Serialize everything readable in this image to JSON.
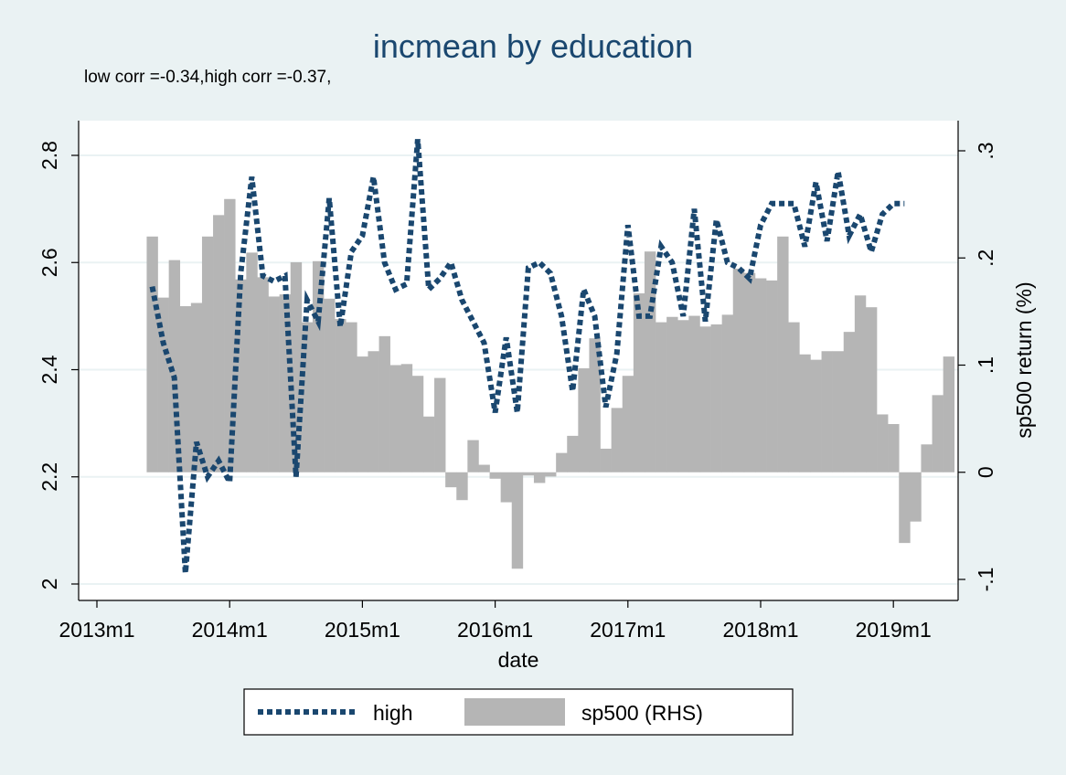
{
  "chart_data": {
    "type": "bar",
    "title": "incmean by education",
    "subtitle": "low corr =-0.34,high corr =-0.37,",
    "xlabel": "date",
    "ylabel_left": "",
    "ylabel_right": "sp500 return (%)",
    "x_ticks": [
      "2013m1",
      "2014m1",
      "2015m1",
      "2016m1",
      "2017m1",
      "2018m1",
      "2019m1"
    ],
    "y_left_ticks": [
      "2",
      "2.2",
      "2.4",
      "2.6",
      "2.8"
    ],
    "y_left_range": [
      2.0,
      2.8
    ],
    "y_right_ticks": [
      "-.1",
      "0",
      ".1",
      ".2",
      ".3"
    ],
    "y_right_range": [
      -0.1,
      0.3
    ],
    "legend": {
      "position": "bottom",
      "items": [
        "high",
        "sp500 (RHS)"
      ]
    },
    "colors": {
      "line": "#1a476f",
      "bar": "#b5b5b5"
    },
    "start_month": "2013m6",
    "series": [
      {
        "name": "sp500 (RHS)",
        "type": "bar",
        "axis": "right",
        "values": [
          0.22,
          0.163,
          0.198,
          0.155,
          0.158,
          0.22,
          0.24,
          0.255,
          0.18,
          0.205,
          0.182,
          0.164,
          0.166,
          0.196,
          0.14,
          0.197,
          0.162,
          0.143,
          0.14,
          0.108,
          0.113,
          0.127,
          0.1,
          0.101,
          0.09,
          0.052,
          0.088,
          -0.014,
          -0.026,
          0.03,
          0.007,
          -0.006,
          -0.028,
          -0.09,
          -0.003,
          -0.01,
          -0.004,
          0.018,
          0.034,
          0.097,
          0.125,
          0.022,
          0.06,
          0.09,
          0.167,
          0.206,
          0.14,
          0.145,
          0.142,
          0.146,
          0.136,
          0.138,
          0.147,
          0.19,
          0.186,
          0.181,
          0.179,
          0.22,
          0.14,
          0.11,
          0.105,
          0.113,
          0.113,
          0.131,
          0.165,
          0.154,
          0.054,
          0.045,
          -0.066,
          -0.046,
          0.026,
          0.072,
          0.108
        ]
      },
      {
        "name": "high",
        "type": "line",
        "axis": "left",
        "values": [
          2.555,
          2.45,
          2.385,
          2.02,
          2.265,
          2.2,
          2.23,
          2.19,
          2.58,
          2.76,
          2.575,
          2.565,
          2.575,
          2.2,
          2.53,
          2.49,
          2.72,
          2.48,
          2.62,
          2.65,
          2.76,
          2.6,
          2.55,
          2.56,
          2.83,
          2.55,
          2.57,
          2.6,
          2.53,
          2.49,
          2.45,
          2.32,
          2.46,
          2.32,
          2.59,
          2.6,
          2.58,
          2.5,
          2.36,
          2.55,
          2.5,
          2.33,
          2.43,
          2.67,
          2.5,
          2.5,
          2.63,
          2.6,
          2.5,
          2.7,
          2.49,
          2.68,
          2.6,
          2.59,
          2.57,
          2.67,
          2.71,
          2.71,
          2.71,
          2.63,
          2.75,
          2.64,
          2.77,
          2.65,
          2.69,
          2.62,
          2.69,
          2.71,
          2.71
        ]
      }
    ]
  }
}
